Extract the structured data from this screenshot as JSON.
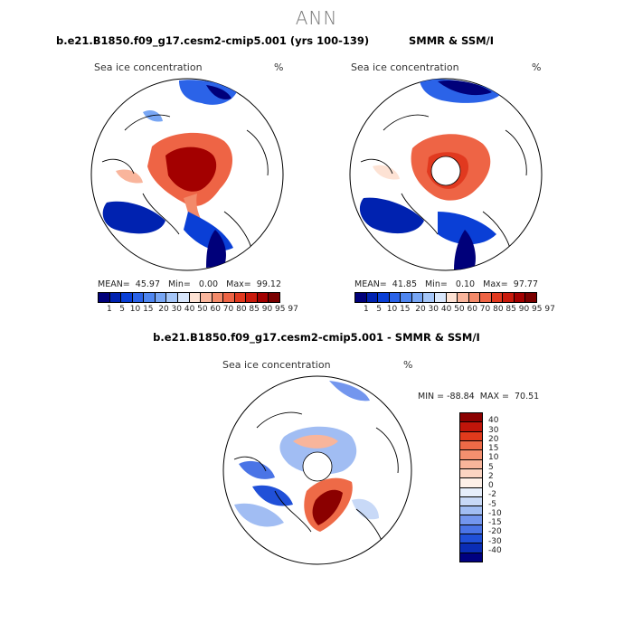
{
  "season": "ANN",
  "panels": {
    "model": {
      "title": "b.e21.B1850.f09_g17.cesm2-cmip5.001 (yrs 100-139)",
      "variable": "Sea ice concentration",
      "units": "%",
      "stats": "MEAN=  45.97   Min=   0.00   Max=  99.12"
    },
    "obs": {
      "title": "SMMR & SSM/I",
      "variable": "Sea ice concentration",
      "units": "%",
      "stats": "MEAN=  41.85   Min=   0.10   Max=  97.77"
    },
    "diff": {
      "title": "b.e21.B1850.f09_g17.cesm2-cmip5.001 - SMMR & SSM/I",
      "variable": "Sea ice concentration",
      "units": "%",
      "stats": "MIN = -88.84  MAX =  70.51"
    }
  },
  "colorbar_levels": "1   5  10 15  20 30 40 50 60 70 80 85 90 95 97",
  "colorbar_colors": [
    "#00007a",
    "#0022b0",
    "#0a3fd6",
    "#2b63e8",
    "#4f86f0",
    "#78a6f4",
    "#a5c6f8",
    "#d8e6fb",
    "#fde2d4",
    "#f9b59c",
    "#f38a6a",
    "#ee6445",
    "#e1391f",
    "#c91a0c",
    "#a30000",
    "#7a0000"
  ],
  "diff_levels": [
    "40",
    "30",
    "20",
    "15",
    "10",
    "5",
    "2",
    "0",
    "-2",
    "-5",
    "-10",
    "-15",
    "-20",
    "-30",
    "-40"
  ],
  "diff_colors": [
    "#8b0000",
    "#c0150a",
    "#e03a1c",
    "#ee6a47",
    "#f4906f",
    "#f8b59b",
    "#fbd4c2",
    "#fef0e8",
    "#e6eefb",
    "#c8d9f7",
    "#a1bdf3",
    "#7396ee",
    "#4a74e6",
    "#2050d8",
    "#0a2db5",
    "#000080"
  ]
}
